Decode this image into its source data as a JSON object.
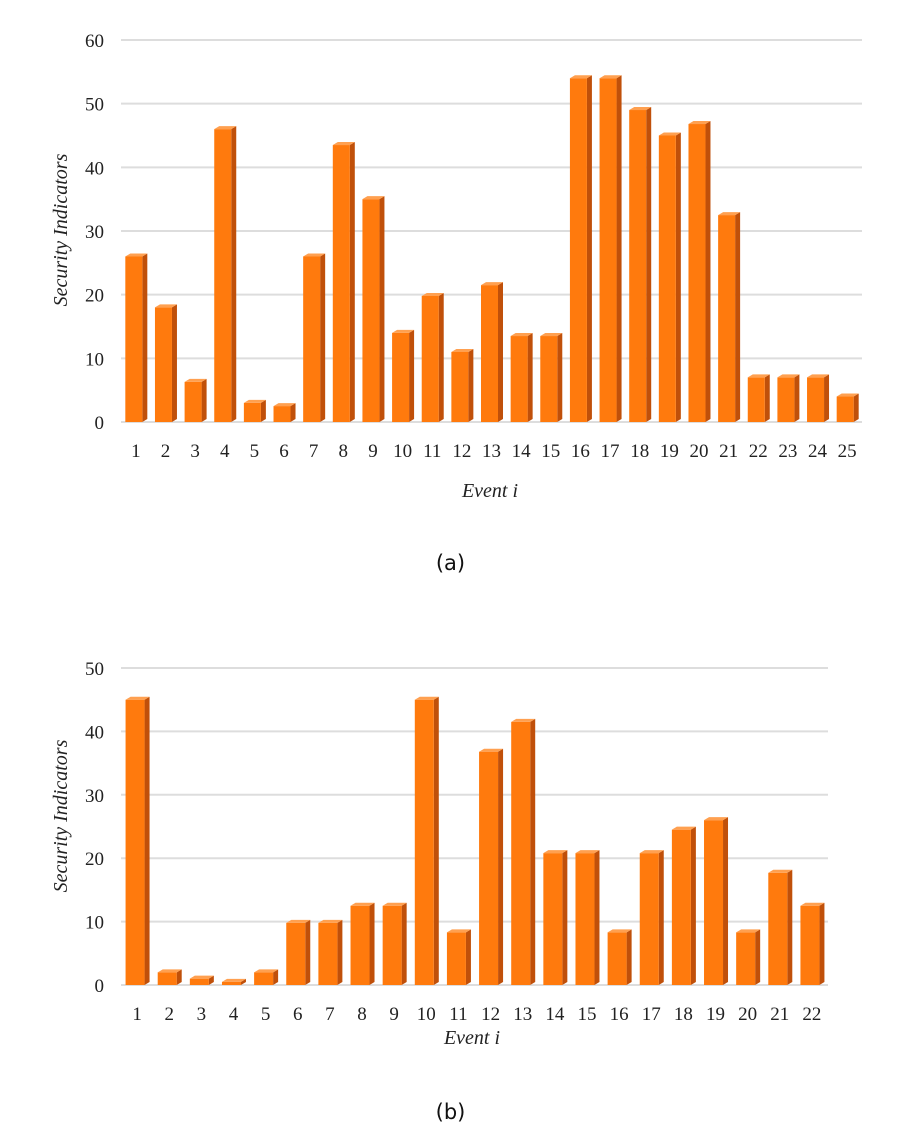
{
  "colors": {
    "bar_front": "#FF7A0D",
    "bar_side": "#C0500A",
    "bar_top": "#FFA050",
    "grid": "#DDDDDD"
  },
  "chart_data": [
    {
      "type": "bar",
      "caption": "(a)",
      "xlabel": "Event i",
      "ylabel": "Security Indicators",
      "ylim": [
        0,
        60
      ],
      "yticks": [
        "0",
        "10",
        "20",
        "30",
        "40",
        "50",
        "60"
      ],
      "categories": [
        "1",
        "2",
        "3",
        "4",
        "5",
        "6",
        "7",
        "8",
        "9",
        "10",
        "11",
        "12",
        "13",
        "14",
        "15",
        "16",
        "17",
        "18",
        "19",
        "20",
        "21",
        "22",
        "23",
        "24",
        "25"
      ],
      "values": [
        26,
        18,
        6.3,
        46,
        3,
        2.5,
        26,
        43.5,
        35,
        14,
        19.8,
        11,
        21.5,
        13.5,
        13.5,
        54,
        54,
        49,
        45,
        46.8,
        32.5,
        7,
        7,
        7,
        4
      ]
    },
    {
      "type": "bar",
      "caption": "(b)",
      "xlabel": "Event i",
      "ylabel": "Security Indicators",
      "ylim": [
        0,
        50
      ],
      "yticks": [
        "0",
        "10",
        "20",
        "30",
        "40",
        "50"
      ],
      "categories": [
        "1",
        "2",
        "3",
        "4",
        "5",
        "6",
        "7",
        "8",
        "9",
        "10",
        "11",
        "12",
        "13",
        "14",
        "15",
        "16",
        "17",
        "18",
        "19",
        "20",
        "21",
        "22"
      ],
      "values": [
        45,
        2,
        1,
        0.5,
        2,
        9.8,
        9.8,
        12.5,
        12.5,
        45,
        8.3,
        36.8,
        41.5,
        20.8,
        20.8,
        8.3,
        20.8,
        24.5,
        26,
        8.3,
        17.7,
        12.5
      ]
    }
  ]
}
